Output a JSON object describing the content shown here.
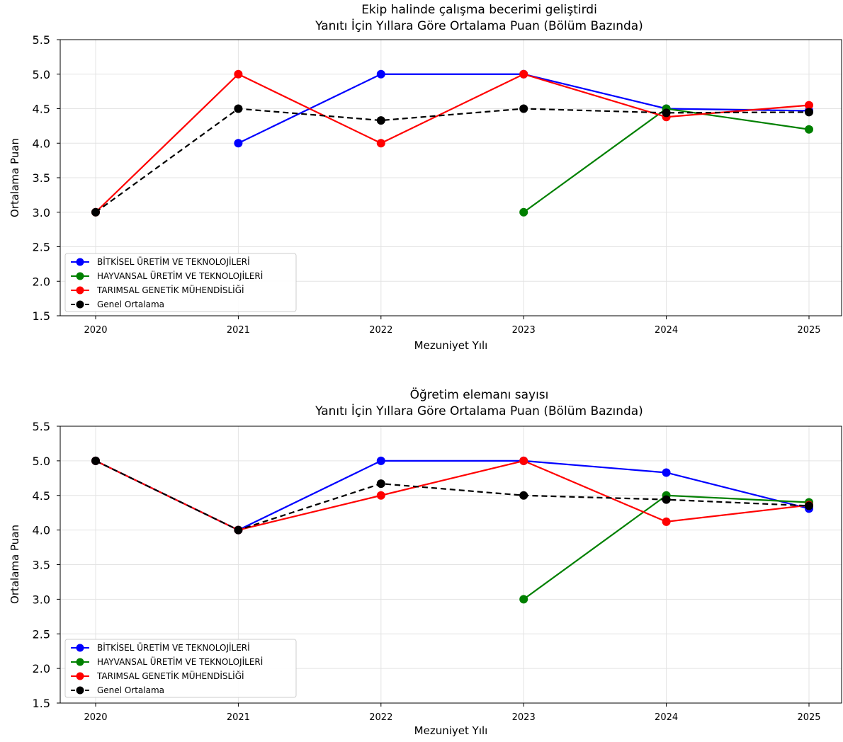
{
  "chart_data": [
    {
      "type": "line",
      "title_line1": "Ekip halinde çalışma becerimi geliştirdi",
      "title_line2": "Yanıtı İçin Yıllara Göre Ortalama Puan (Bölüm Bazında)",
      "xlabel": "Mezuniyet Yılı",
      "ylabel": "Ortalama Puan",
      "categories": [
        "2020",
        "2021",
        "2022",
        "2023",
        "2024",
        "2025"
      ],
      "yticks": [
        "1.5",
        "2.0",
        "2.5",
        "3.0",
        "3.5",
        "4.0",
        "4.5",
        "5.0",
        "5.5"
      ],
      "ylim": [
        1.5,
        5.5
      ],
      "grid": true,
      "legend_position": "lower-left",
      "series": [
        {
          "name": "BİTKİSEL ÜRETİM VE TEKNOLOJİLERİ",
          "color": "#0000ff",
          "dashed": false,
          "values": [
            null,
            4.0,
            5.0,
            5.0,
            4.5,
            4.47
          ]
        },
        {
          "name": "HAYVANSAL ÜRETİM VE TEKNOLOJİLERİ",
          "color": "#008000",
          "dashed": false,
          "values": [
            null,
            null,
            null,
            3.0,
            4.5,
            4.2
          ]
        },
        {
          "name": "TARIMSAL GENETİK MÜHENDİSLİĞİ",
          "color": "#ff0000",
          "dashed": false,
          "values": [
            3.0,
            5.0,
            4.0,
            5.0,
            4.38,
            4.55
          ]
        },
        {
          "name": "Genel Ortalama",
          "color": "#000000",
          "dashed": true,
          "values": [
            3.0,
            4.5,
            4.33,
            4.5,
            4.44,
            4.45
          ]
        }
      ]
    },
    {
      "type": "line",
      "title_line1": "Öğretim elemanı sayısı",
      "title_line2": "Yanıtı İçin Yıllara Göre Ortalama Puan (Bölüm Bazında)",
      "xlabel": "Mezuniyet Yılı",
      "ylabel": "Ortalama Puan",
      "categories": [
        "2020",
        "2021",
        "2022",
        "2023",
        "2024",
        "2025"
      ],
      "yticks": [
        "1.5",
        "2.0",
        "2.5",
        "3.0",
        "3.5",
        "4.0",
        "4.5",
        "5.0",
        "5.5"
      ],
      "ylim": [
        1.5,
        5.5
      ],
      "grid": true,
      "legend_position": "lower-left",
      "series": [
        {
          "name": "BİTKİSEL ÜRETİM VE TEKNOLOJİLERİ",
          "color": "#0000ff",
          "dashed": false,
          "values": [
            5.0,
            4.0,
            5.0,
            5.0,
            4.83,
            4.31
          ]
        },
        {
          "name": "HAYVANSAL ÜRETİM VE TEKNOLOJİLERİ",
          "color": "#008000",
          "dashed": false,
          "values": [
            null,
            null,
            null,
            3.0,
            4.5,
            4.4
          ]
        },
        {
          "name": "TARIMSAL GENETİK MÜHENDİSLİĞİ",
          "color": "#ff0000",
          "dashed": false,
          "values": [
            5.0,
            4.0,
            4.5,
            5.0,
            4.12,
            4.36
          ]
        },
        {
          "name": "Genel Ortalama",
          "color": "#000000",
          "dashed": true,
          "values": [
            5.0,
            4.0,
            4.67,
            4.5,
            4.44,
            4.35
          ]
        }
      ]
    }
  ]
}
